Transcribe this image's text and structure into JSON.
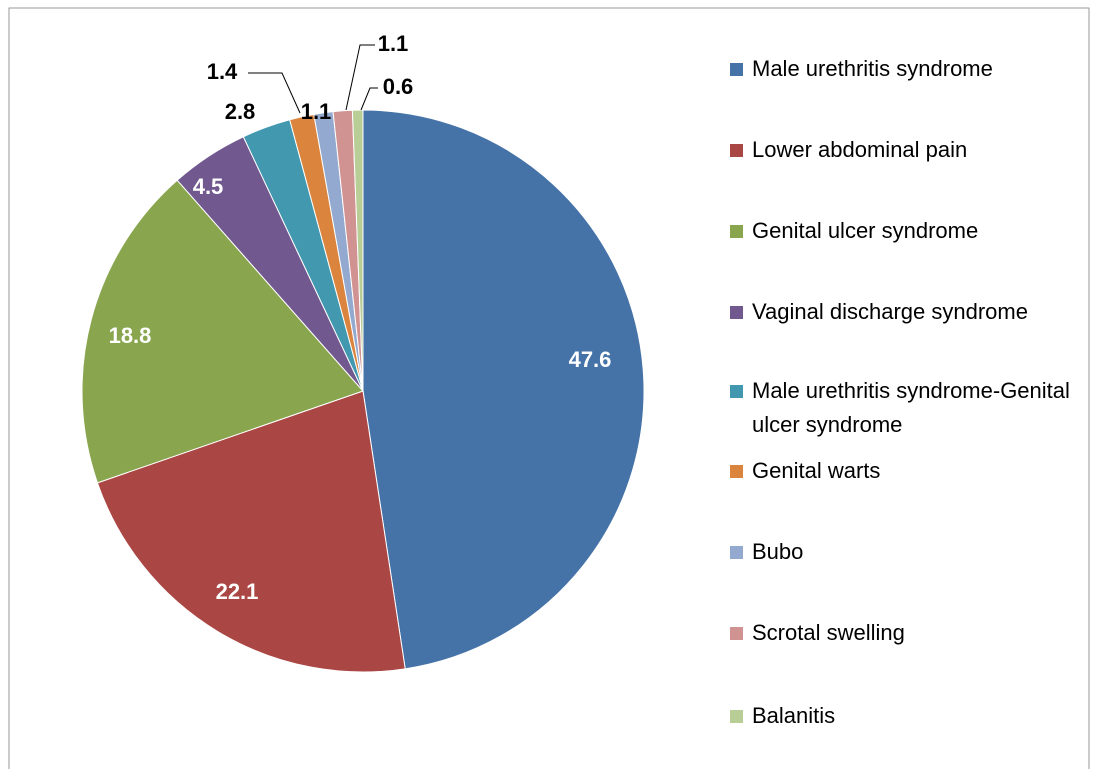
{
  "chart_data": {
    "type": "pie",
    "categories": [
      "Male urethritis syndrome",
      "Lower abdominal pain",
      "Genital ulcer syndrome",
      "Vaginal discharge syndrome",
      "Male urethritis syndrome-Genital ulcer syndrome",
      "Genital warts",
      "Bubo",
      "Scrotal swelling",
      "Balanitis"
    ],
    "values": [
      47.6,
      22.1,
      18.8,
      4.5,
      2.8,
      1.4,
      1.1,
      1.1,
      0.6
    ],
    "colors": [
      "#4572a7",
      "#aa4643",
      "#89a54e",
      "#71588f",
      "#4198af",
      "#db843d",
      "#93a9cf",
      "#d19392",
      "#b9cd96"
    ],
    "legend": "right"
  }
}
